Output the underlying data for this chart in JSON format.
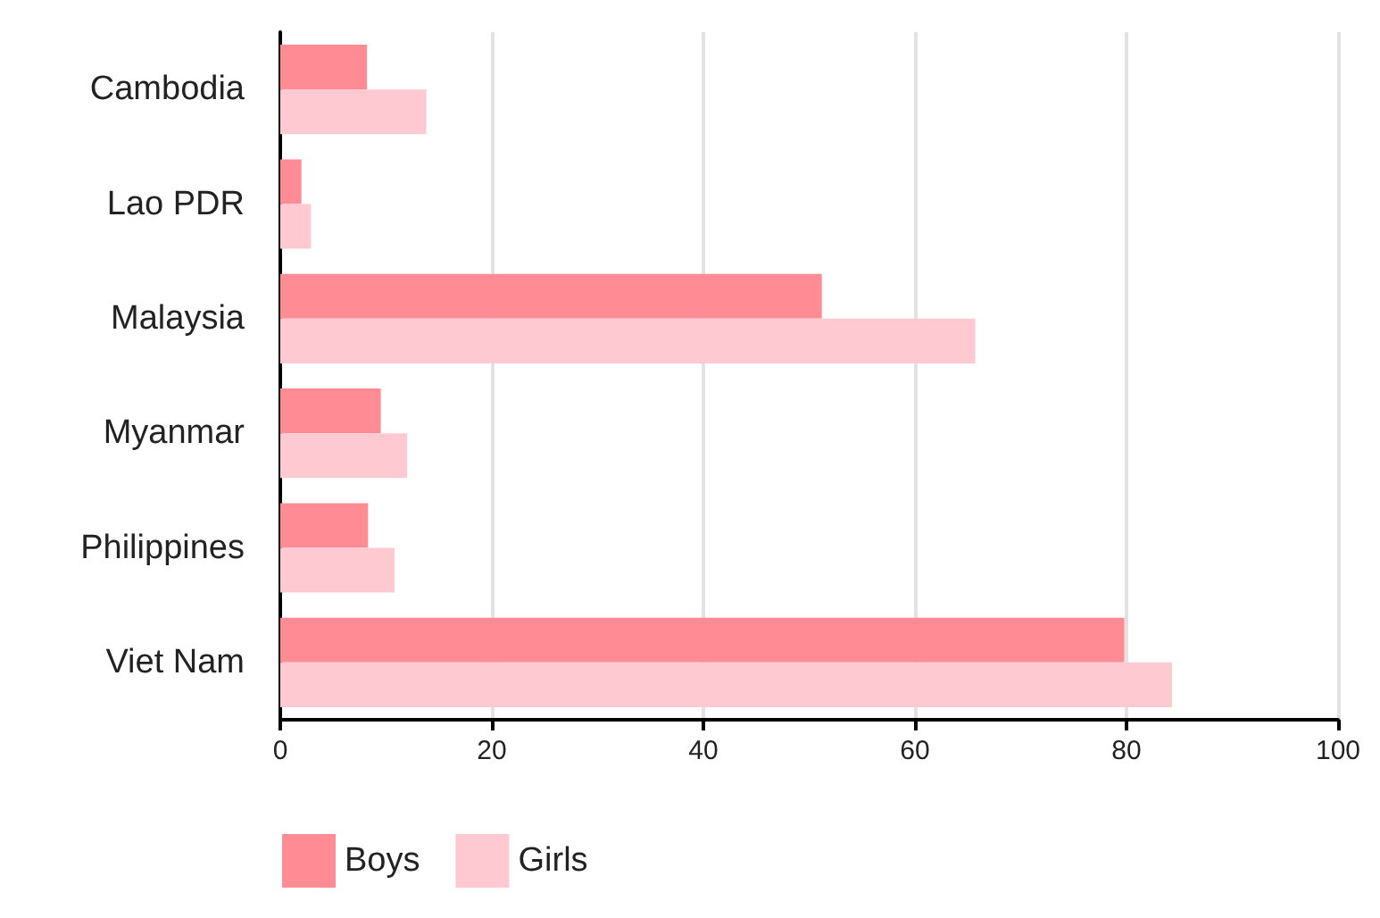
{
  "chart_data": {
    "type": "bar",
    "orientation": "horizontal",
    "categories": [
      "Cambodia",
      "Lao PDR",
      "Malaysia",
      "Myanmar",
      "Philippines",
      "Viet Nam"
    ],
    "series": [
      {
        "name": "Boys",
        "color": "#ff8c94",
        "values": [
          8.2,
          2.0,
          51.2,
          9.5,
          8.3,
          79.8
        ]
      },
      {
        "name": "Girls",
        "color": "#ffc9d1",
        "values": [
          13.8,
          2.9,
          65.7,
          12.0,
          10.8,
          84.3
        ]
      }
    ],
    "xlim": [
      0,
      100
    ],
    "xticks": [
      0,
      20,
      40,
      60,
      80,
      100
    ],
    "grid": "x",
    "legend": "bottom left"
  }
}
